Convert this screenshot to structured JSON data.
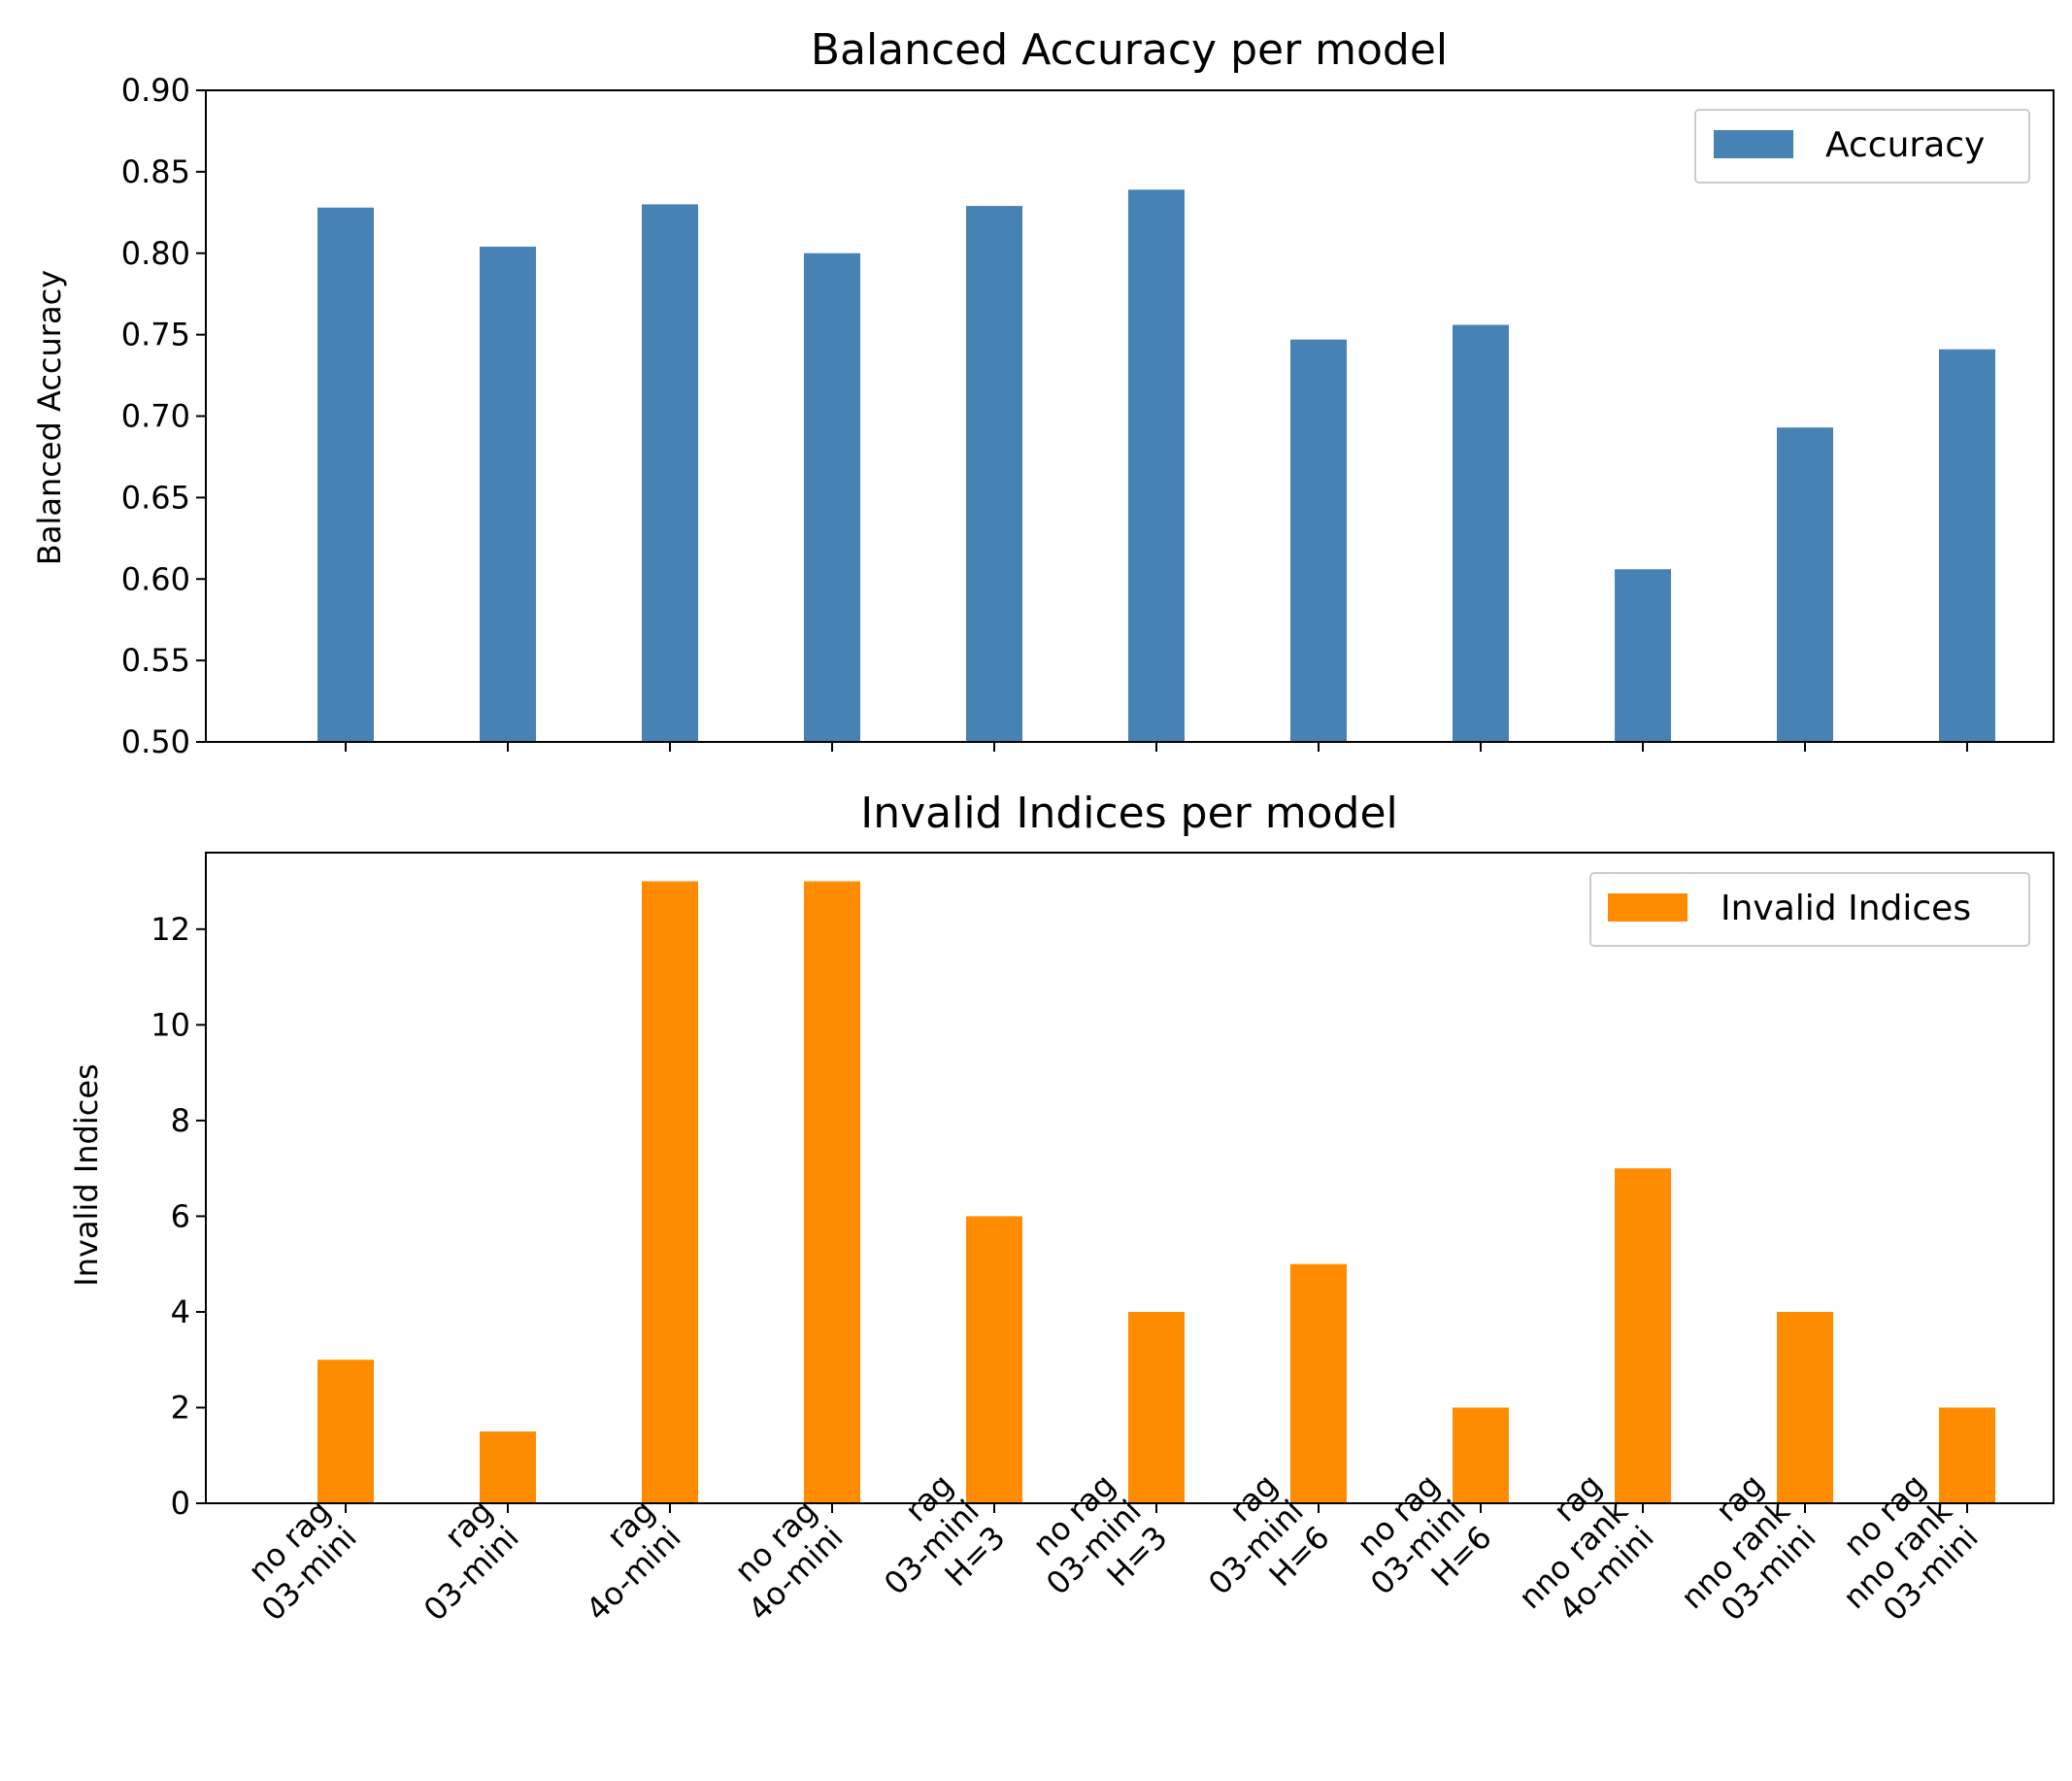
{
  "colors": {
    "accuracy": "#4682b4",
    "invalid": "#ff8c00"
  },
  "chart_data": [
    {
      "type": "bar",
      "title": "Balanced Accuracy per model",
      "xlabel": "",
      "ylabel": "Balanced Accuracy",
      "ylim": [
        0.5,
        0.9
      ],
      "yticks": [
        "0.50",
        "0.55",
        "0.60",
        "0.65",
        "0.70",
        "0.75",
        "0.80",
        "0.85",
        "0.90"
      ],
      "grid": false,
      "legend": "top-right",
      "categories": [
        "no rag\n03-mini",
        "rag\n03-mini",
        "rag\n4o-mini",
        "no rag\n4o-mini",
        "rag\n03-mini\nH=3",
        "no rag\n03-mini\nH=3",
        "rag\n03-mini\nH=6",
        "no rag\n03-mini\nH=6",
        "rag\nnno rank\n4o-mini",
        "rag\nnno rank\n03-mini",
        "no rag\nnno rank\n03-mini"
      ],
      "series": [
        {
          "name": "Accuracy",
          "values": [
            0.828,
            0.804,
            0.83,
            0.8,
            0.829,
            0.839,
            0.747,
            0.756,
            0.606,
            0.693,
            0.741
          ]
        }
      ]
    },
    {
      "type": "bar",
      "title": "Invalid Indices per model",
      "xlabel": "",
      "ylabel": "Invalid Indices",
      "ylim": [
        0,
        13.6
      ],
      "yticks": [
        "0",
        "2",
        "4",
        "6",
        "8",
        "10",
        "12"
      ],
      "grid": false,
      "legend": "top-right",
      "categories": [
        "no rag\n03-mini",
        "rag\n03-mini",
        "rag\n4o-mini",
        "no rag\n4o-mini",
        "rag\n03-mini\nH=3",
        "no rag\n03-mini\nH=3",
        "rag\n03-mini\nH=6",
        "no rag\n03-mini\nH=6",
        "rag\nnno rank\n4o-mini",
        "rag\nnno rank\n03-mini",
        "no rag\nnno rank\n03-mini"
      ],
      "series": [
        {
          "name": "Invalid Indices",
          "values": [
            3,
            1.5,
            13,
            13,
            6,
            4,
            5,
            2,
            7,
            4,
            2
          ]
        }
      ]
    }
  ]
}
